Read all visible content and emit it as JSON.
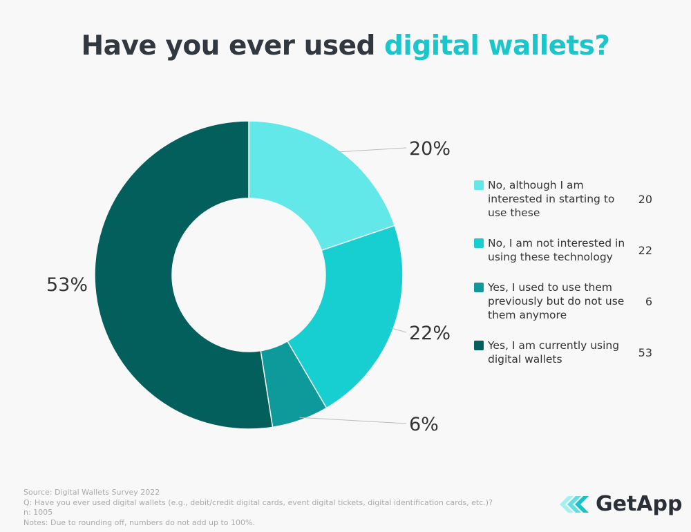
{
  "title": {
    "prefix": "Have you ever used ",
    "accent": "digital wallets?"
  },
  "chart_data": {
    "type": "pie",
    "donut": true,
    "categories": [
      "No, although I am interested in starting to use these",
      "No, I am not interested in using these technology",
      "Yes, I used to use them previously but do not use them anymore",
      "Yes, I am currently using digital wallets"
    ],
    "values": [
      20,
      22,
      6,
      53
    ],
    "data_labels": [
      "20%",
      "22%",
      "6%",
      "53%"
    ],
    "colors": [
      "#62e8e8",
      "#17cfd1",
      "#0e9a9a",
      "#035f5b"
    ],
    "legend_placement": "right"
  },
  "footer": {
    "source": "Source: Digital Wallets Survey 2022",
    "question": "Q: Have you ever used digital wallets (e.g., debit/credit digital cards, event digital tickets, digital identification cards, etc.)?",
    "n": "n: 1005",
    "notes": "Notes: Due to rounding off, numbers do not add up to 100%."
  },
  "logo": {
    "text": "GetApp"
  }
}
